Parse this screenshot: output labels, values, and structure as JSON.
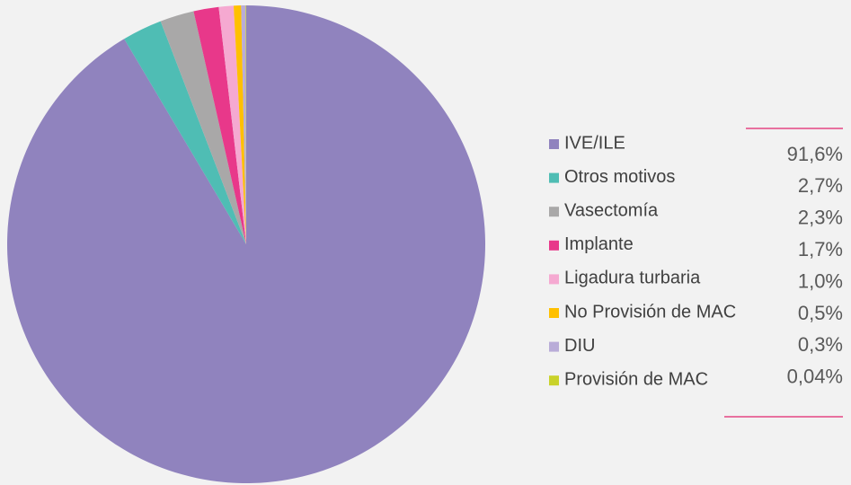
{
  "chart_data": {
    "type": "pie",
    "categories": [
      "IVE/ILE",
      "Otros motivos",
      "Vasectomía",
      "Implante",
      "Ligadura turbaria",
      "No Provisión de MAC",
      "DIU",
      "Provisión de MAC"
    ],
    "values": [
      91.6,
      2.7,
      2.3,
      1.7,
      1.0,
      0.5,
      0.3,
      0.04
    ],
    "value_labels": [
      "91,6%",
      "2,7%",
      "2,3%",
      "1,7%",
      "1,0%",
      "0,5%",
      "0,3%",
      "0,04%"
    ],
    "colors": [
      "#9083be",
      "#4fbdb4",
      "#a9a8a8",
      "#e8388a",
      "#f5a9d1",
      "#ffc000",
      "#b9acd8",
      "#c9d22a"
    ]
  }
}
